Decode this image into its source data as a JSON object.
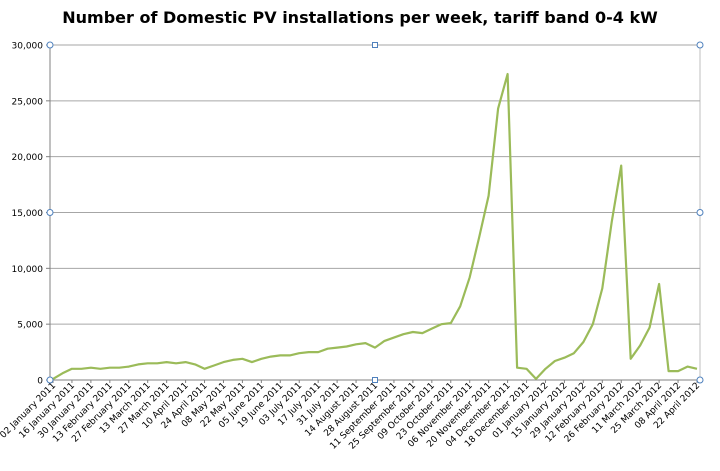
{
  "chart_data": {
    "type": "line",
    "title": "Number of Domestic PV installations per week, tariff band 0-4 kW",
    "xlabel": "",
    "ylabel": "",
    "ylim": [
      0,
      30000
    ],
    "yticks": [
      "0",
      "5,000",
      "10,000",
      "15,000",
      "20,000",
      "25,000",
      "30,000"
    ],
    "ytick_values": [
      0,
      5000,
      10000,
      15000,
      20000,
      25000,
      30000
    ],
    "grid": true,
    "legend": "none",
    "line_color": "#9bbb59",
    "x_tick_labels": [
      "02 January 2011",
      "16 January 2011",
      "30 January 2011",
      "13 February 2011",
      "27 February 2011",
      "13 March 2011",
      "27 March 2011",
      "10 April 2011",
      "24 April 2011",
      "08 May 2011",
      "22 May 2011",
      "05 June 2011",
      "19 June 2011",
      "03 July 2011",
      "17 July 2011",
      "31 July 2011",
      "14 August 2011",
      "28 August 2011",
      "11 September 2011",
      "25 September 2011",
      "09 October 2011",
      "23 October 2011",
      "06 November 2011",
      "20 November 2011",
      "04 December 2011",
      "18 December 2011",
      "01 January 2012",
      "15 January 2012",
      "29 January 2012",
      "12 February 2012",
      "26 February 2012",
      "11 March 2012",
      "25 March 2012",
      "08 April 2012",
      "22 April 2012"
    ],
    "series": [
      {
        "values": [
          100,
          600,
          1000,
          1000,
          1100,
          1000,
          1100,
          1100,
          1200,
          1400,
          1500,
          1500,
          1600,
          1500,
          1600,
          1400,
          1000,
          1300,
          1600,
          1800,
          1900,
          1600,
          1900,
          2100,
          2200,
          2200,
          2400,
          2500,
          2500,
          2800,
          2900,
          3000,
          3200,
          3300,
          2900,
          3500,
          3800,
          4100,
          4300,
          4200,
          4600,
          5000,
          5100,
          6600,
          9200,
          12800,
          16500,
          24300,
          27400,
          1100,
          1000,
          100,
          1000,
          1700,
          2000,
          2400,
          3400,
          5000,
          8200,
          14200,
          19200,
          1900,
          3100,
          4700,
          8600,
          800,
          800,
          1200,
          1000
        ]
      }
    ]
  }
}
